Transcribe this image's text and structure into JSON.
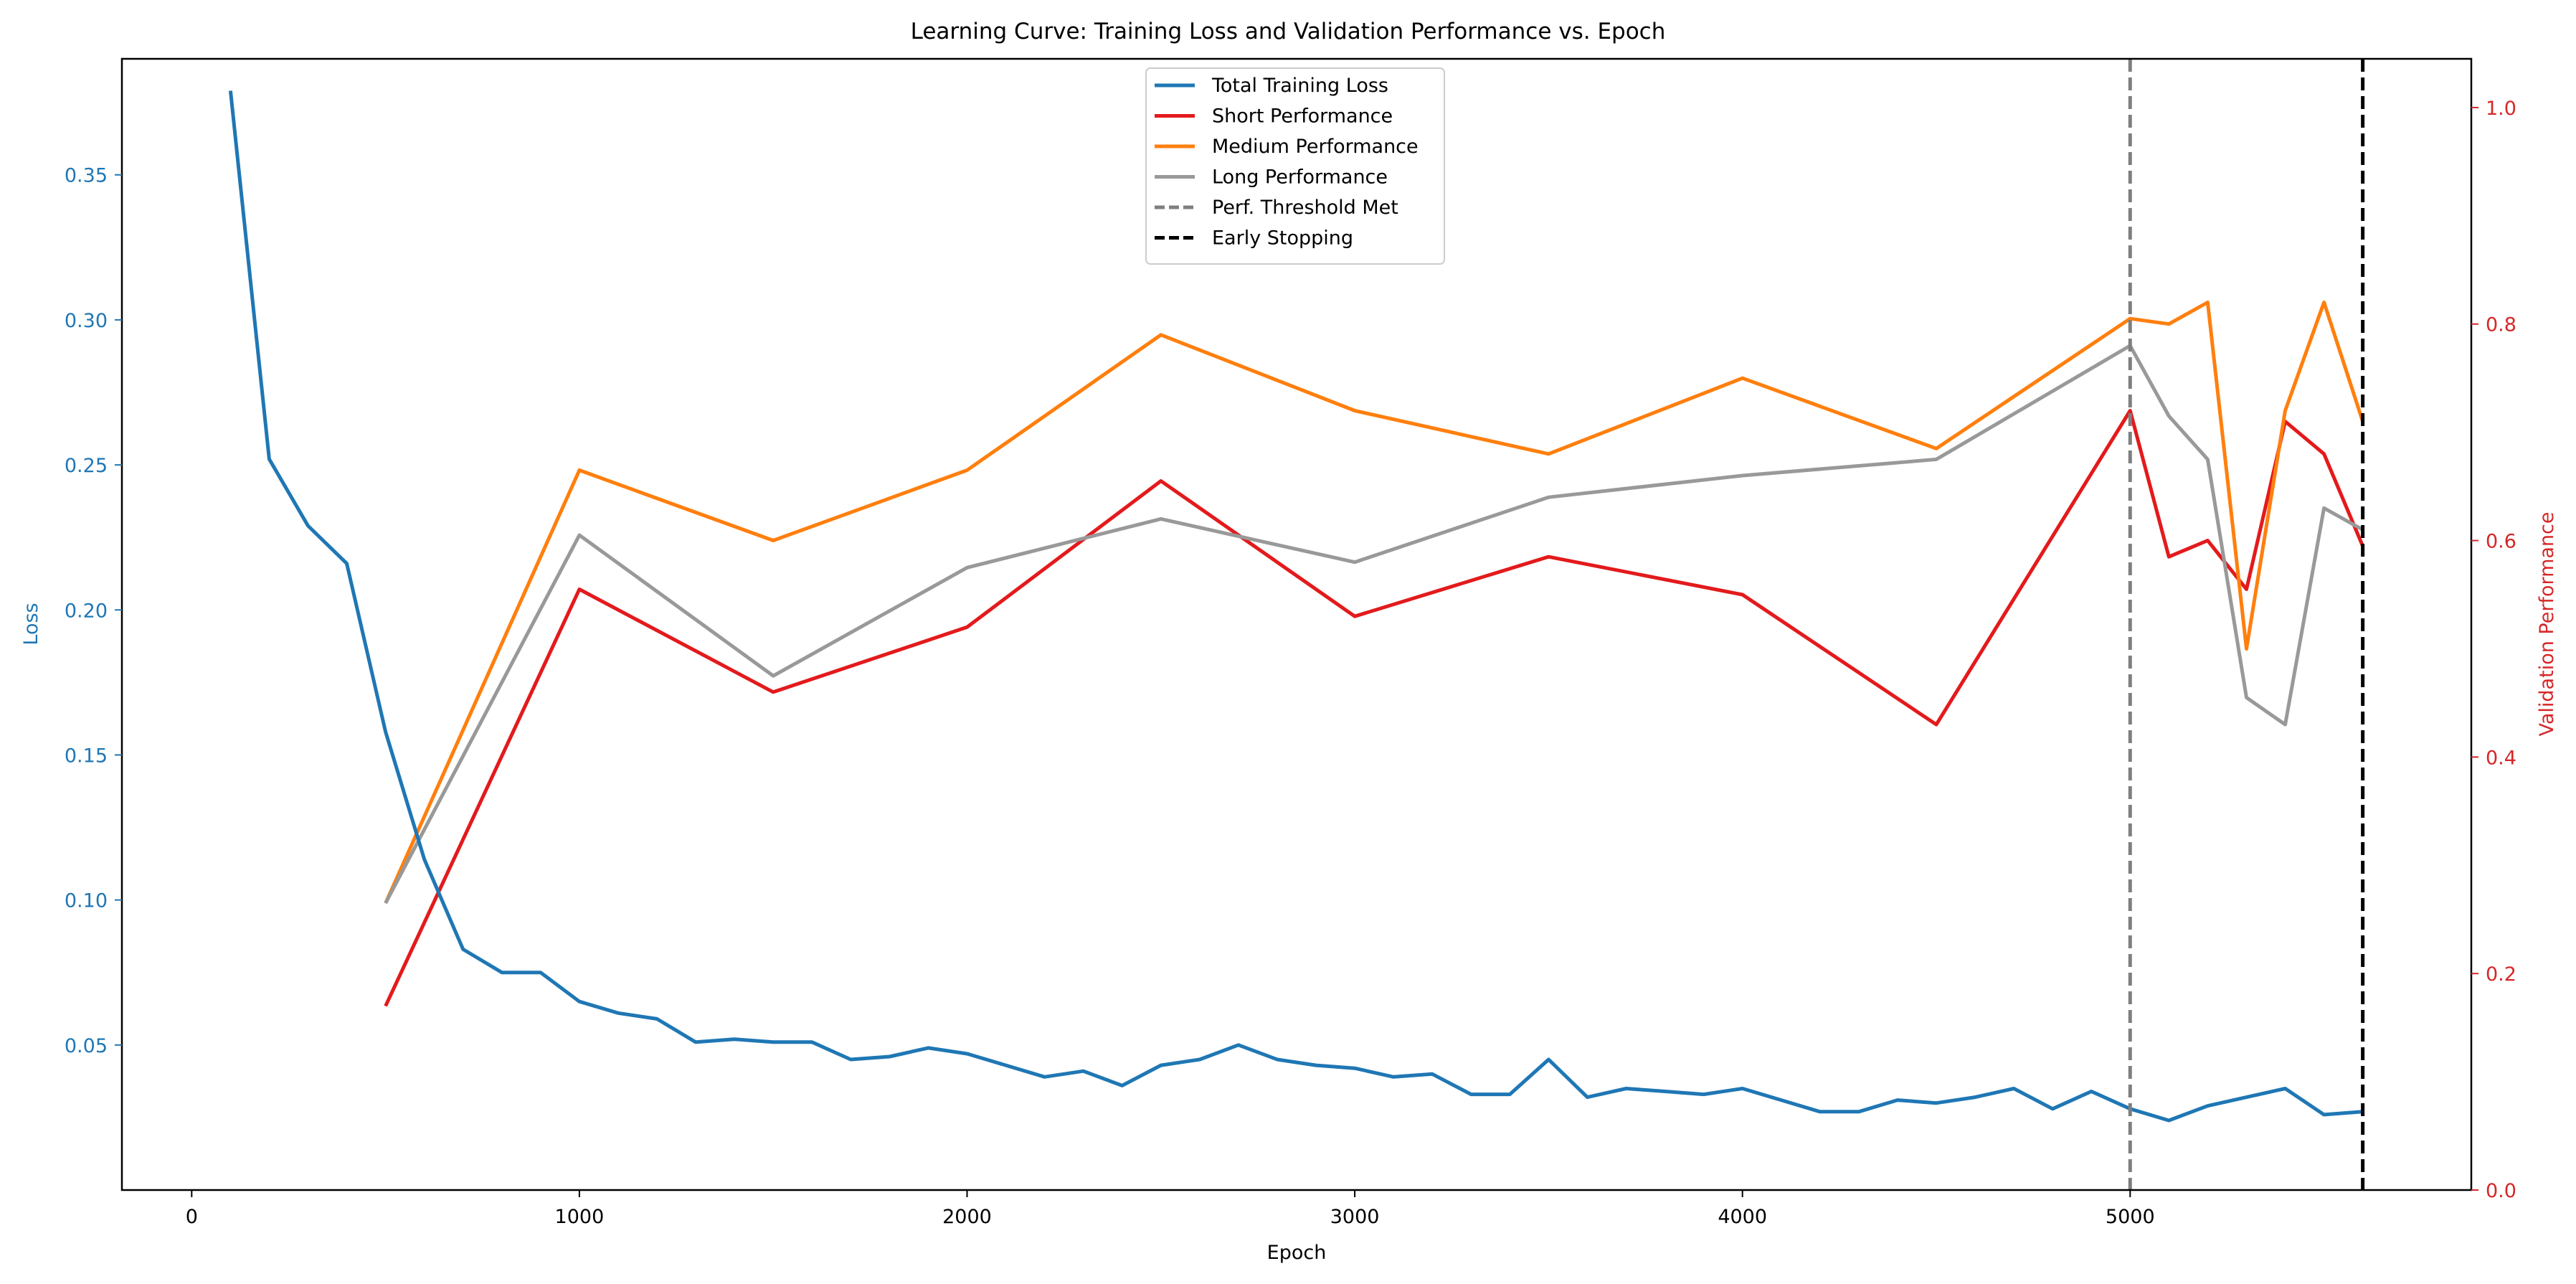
{
  "chart_data": {
    "type": "line",
    "title": "Learning Curve: Training Loss and Validation Performance vs. Epoch",
    "xlabel": "Epoch",
    "ylabel_left": "Loss",
    "ylabel_right": "Validation Performance",
    "xlim": [
      -180,
      5880
    ],
    "ylim_left": [
      0.0,
      0.39
    ],
    "ylim_right": [
      0.0,
      1.045
    ],
    "x_ticks": [
      0,
      1000,
      2000,
      3000,
      4000,
      5000
    ],
    "y_left_ticks": [
      0.05,
      0.1,
      0.15,
      0.2,
      0.25,
      0.3,
      0.35
    ],
    "y_right_ticks": [
      0.0,
      0.2,
      0.4,
      0.6,
      0.8,
      1.0
    ],
    "x_tick_labels": [
      "0",
      "1000",
      "2000",
      "3000",
      "4000",
      "5000"
    ],
    "y_left_tick_labels": [
      "0.05",
      "0.10",
      "0.15",
      "0.20",
      "0.25",
      "0.30",
      "0.35"
    ],
    "y_right_tick_labels": [
      "0.0",
      "0.2",
      "0.4",
      "0.6",
      "0.8",
      "1.0"
    ],
    "grid": false,
    "legend_position": "top-center",
    "colors": {
      "left_axis": "#1f77b4",
      "right_axis": "#d62728"
    },
    "series": [
      {
        "name": "Total Training Loss",
        "axis": "left",
        "color": "#1f77b4",
        "style": "solid",
        "x": [
          100,
          200,
          300,
          400,
          500,
          600,
          700,
          800,
          900,
          1000,
          1100,
          1200,
          1300,
          1400,
          1500,
          1600,
          1700,
          1800,
          1900,
          2000,
          2100,
          2200,
          2300,
          2400,
          2500,
          2600,
          2700,
          2800,
          2900,
          3000,
          3100,
          3200,
          3300,
          3400,
          3500,
          3600,
          3700,
          3800,
          3900,
          4000,
          4100,
          4200,
          4300,
          4400,
          4500,
          4600,
          4700,
          4800,
          4900,
          5000,
          5100,
          5200,
          5300,
          5400,
          5500,
          5600
        ],
        "values": [
          0.379,
          0.252,
          0.229,
          0.216,
          0.158,
          0.114,
          0.083,
          0.075,
          0.075,
          0.065,
          0.061,
          0.059,
          0.051,
          0.052,
          0.051,
          0.051,
          0.045,
          0.046,
          0.049,
          0.047,
          0.043,
          0.039,
          0.041,
          0.036,
          0.043,
          0.045,
          0.05,
          0.045,
          0.043,
          0.042,
          0.039,
          0.04,
          0.033,
          0.033,
          0.045,
          0.032,
          0.035,
          0.034,
          0.033,
          0.035,
          0.031,
          0.027,
          0.027,
          0.031,
          0.03,
          0.032,
          0.035,
          0.028,
          0.034,
          0.028,
          0.024,
          0.029,
          0.032,
          0.035,
          0.026,
          0.027
        ]
      },
      {
        "name": "Short Performance",
        "axis": "right",
        "color": "#e31a1c",
        "style": "solid",
        "x": [
          500,
          1000,
          1500,
          2000,
          2500,
          3000,
          3500,
          4000,
          4500,
          5000,
          5100,
          5200,
          5300,
          5400,
          5500,
          5600
        ],
        "values": [
          0.17,
          0.555,
          0.46,
          0.52,
          0.655,
          0.53,
          0.585,
          0.55,
          0.43,
          0.72,
          0.585,
          0.6,
          0.555,
          0.71,
          0.68,
          0.595
        ]
      },
      {
        "name": "Medium Performance",
        "axis": "right",
        "color": "#ff7f0e",
        "style": "solid",
        "x": [
          500,
          1000,
          1500,
          2000,
          2500,
          3000,
          3500,
          4000,
          4500,
          5000,
          5100,
          5200,
          5300,
          5400,
          5500,
          5600
        ],
        "values": [
          0.265,
          0.665,
          0.6,
          0.665,
          0.79,
          0.72,
          0.68,
          0.75,
          0.685,
          0.805,
          0.8,
          0.82,
          0.5,
          0.72,
          0.82,
          0.71
        ]
      },
      {
        "name": "Long Performance",
        "axis": "right",
        "color": "#999999",
        "style": "solid",
        "x": [
          500,
          1000,
          1500,
          2000,
          2500,
          3000,
          3500,
          4000,
          4500,
          5000,
          5100,
          5200,
          5300,
          5400,
          5500,
          5600
        ],
        "values": [
          0.265,
          0.605,
          0.475,
          0.575,
          0.62,
          0.58,
          0.64,
          0.66,
          0.675,
          0.78,
          0.715,
          0.675,
          0.455,
          0.43,
          0.63,
          0.61
        ]
      }
    ],
    "vlines": [
      {
        "name": "Perf. Threshold Met",
        "x": 5000,
        "color": "#7f7f7f",
        "style": "dashed"
      },
      {
        "name": "Early Stopping",
        "x": 5600,
        "color": "#000000",
        "style": "dashed"
      }
    ]
  }
}
